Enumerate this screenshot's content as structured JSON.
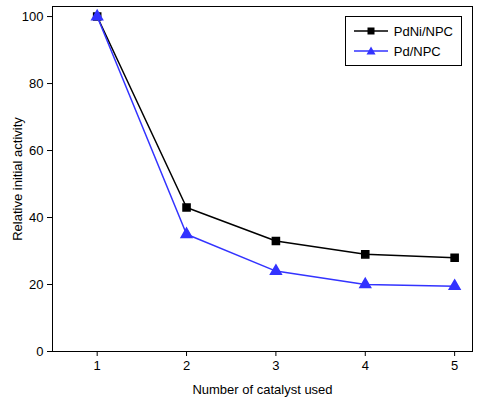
{
  "chart_data": {
    "type": "line",
    "x_label": "Number of catalyst used",
    "y_label": "Relative initial activity",
    "x": [
      1,
      2,
      3,
      4,
      5
    ],
    "series": [
      {
        "name": "PdNi/NPC",
        "color": "#000000",
        "marker": "square",
        "line_style": "solid",
        "values": [
          100,
          43,
          33,
          29,
          28
        ]
      },
      {
        "name": "Pd/NPC",
        "color": "#3333ff",
        "marker": "triangle",
        "line_style": "solid",
        "values": [
          100,
          35,
          24,
          20,
          19.5
        ]
      }
    ],
    "xlim": [
      0.5,
      5.2
    ],
    "xticks": [
      1,
      2,
      3,
      4,
      5
    ],
    "ylim": [
      0,
      103
    ],
    "yticks": [
      0,
      20,
      40,
      60,
      80,
      100
    ],
    "grid": false,
    "legend": "top-right"
  }
}
